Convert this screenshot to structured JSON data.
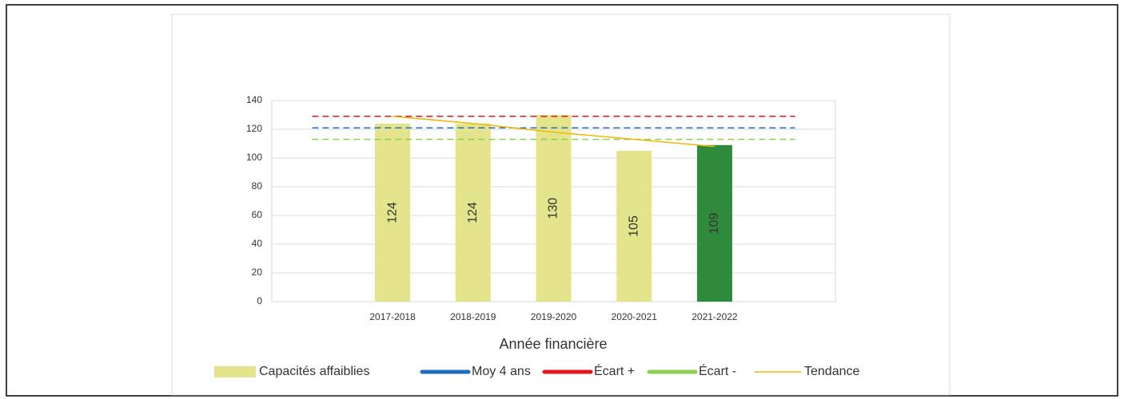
{
  "chart_data": {
    "type": "bar",
    "x_label": "Année financière",
    "categories": [
      null,
      "2017-2018",
      "2018-2019",
      "2019-2020",
      "2020-2021",
      "2021-2022",
      null
    ],
    "series": [
      {
        "name": "Capacités affaiblies",
        "type": "bar",
        "color": "#e3e48c",
        "colors": [
          null,
          "#e3e48c",
          "#e3e48c",
          "#e3e48c",
          "#e3e48c",
          "#2f8a3c",
          null
        ],
        "values": [
          null,
          124,
          124,
          130,
          105,
          109,
          null
        ]
      },
      {
        "name": "Moy 4 ans",
        "type": "line",
        "dashed": true,
        "color": "#1f6fc0",
        "values": [
          121,
          121,
          121,
          121,
          121,
          121,
          121
        ]
      },
      {
        "name": "Écart +",
        "type": "line",
        "dashed": true,
        "color": "#e8141c",
        "values": [
          129,
          129,
          129,
          129,
          129,
          129,
          129
        ]
      },
      {
        "name": "Écart -",
        "type": "line",
        "dashed": true,
        "color": "#8fcf4f",
        "values": [
          113,
          113,
          113,
          113,
          113,
          113,
          113
        ]
      },
      {
        "name": "Tendance",
        "type": "line",
        "dashed": false,
        "color": "#f2b705",
        "values": [
          null,
          129,
          124,
          118,
          113,
          108,
          null
        ]
      }
    ],
    "ylim": [
      0,
      140
    ],
    "yticks": [
      0,
      20,
      40,
      60,
      80,
      100,
      120,
      140
    ],
    "grid": true
  }
}
